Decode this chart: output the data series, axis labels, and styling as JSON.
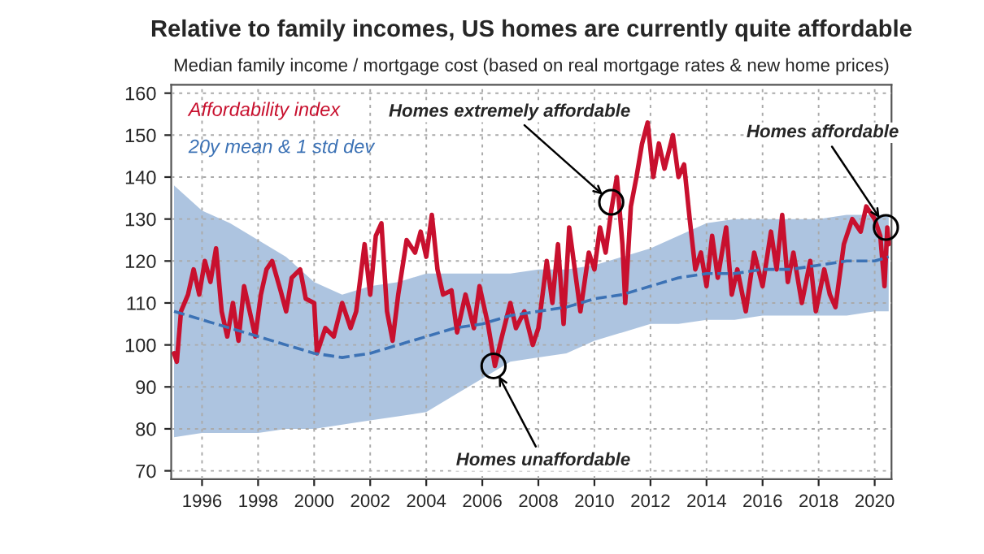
{
  "chart_data": {
    "type": "line",
    "title": "Relative to family incomes, US homes are currently quite affordable",
    "subtitle": "Median family income / mortgage cost (based on real mortgage rates & new home prices)",
    "series": [
      {
        "name": "Affordability index",
        "color": "#c8102e",
        "x": [
          1995.0,
          1995.1,
          1995.25,
          1995.5,
          1995.7,
          1995.9,
          1996.1,
          1996.3,
          1996.5,
          1996.7,
          1996.9,
          1997.1,
          1997.3,
          1997.5,
          1997.7,
          1997.9,
          1998.1,
          1998.3,
          1998.5,
          1998.8,
          1999.0,
          1999.2,
          1999.5,
          1999.7,
          2000.0,
          2000.1,
          2000.4,
          2000.7,
          2001.0,
          2001.3,
          2001.5,
          2001.8,
          2002.0,
          2002.2,
          2002.4,
          2002.6,
          2002.8,
          2003.0,
          2003.3,
          2003.6,
          2003.8,
          2004.0,
          2004.2,
          2004.4,
          2004.6,
          2004.9,
          2005.1,
          2005.4,
          2005.7,
          2005.9,
          2006.2,
          2006.45,
          2006.7,
          2007.0,
          2007.2,
          2007.5,
          2007.8,
          2008.0,
          2008.3,
          2008.5,
          2008.7,
          2008.9,
          2009.1,
          2009.3,
          2009.5,
          2009.8,
          2010.0,
          2010.2,
          2010.4,
          2010.6,
          2010.8,
          2011.0,
          2011.1,
          2011.3,
          2011.5,
          2011.7,
          2011.9,
          2012.1,
          2012.3,
          2012.5,
          2012.8,
          2013.0,
          2013.2,
          2013.4,
          2013.6,
          2013.8,
          2014.0,
          2014.2,
          2014.4,
          2014.7,
          2014.9,
          2015.1,
          2015.4,
          2015.7,
          2016.0,
          2016.3,
          2016.5,
          2016.7,
          2016.9,
          2017.1,
          2017.4,
          2017.7,
          2017.9,
          2018.2,
          2018.4,
          2018.6,
          2018.9,
          2019.2,
          2019.5,
          2019.7,
          2020.0,
          2020.2,
          2020.35,
          2020.45,
          2020.5
        ],
        "values": [
          98,
          96,
          108,
          112,
          118,
          112,
          120,
          115,
          123,
          108,
          102,
          110,
          101,
          114,
          108,
          102,
          112,
          118,
          120,
          113,
          108,
          116,
          118,
          111,
          110,
          98,
          104,
          102,
          110,
          104,
          108,
          124,
          112,
          126,
          129,
          108,
          101,
          112,
          125,
          122,
          127,
          121,
          131,
          118,
          112,
          113,
          103,
          112,
          104,
          114,
          105,
          95,
          102,
          110,
          104,
          108,
          100,
          104,
          120,
          110,
          124,
          105,
          128,
          118,
          108,
          122,
          118,
          128,
          122,
          132,
          140,
          124,
          110,
          133,
          140,
          148,
          153,
          140,
          148,
          142,
          150,
          140,
          143,
          130,
          118,
          122,
          114,
          126,
          116,
          128,
          112,
          118,
          108,
          122,
          114,
          127,
          118,
          131,
          115,
          122,
          110,
          120,
          108,
          118,
          112,
          109,
          124,
          130,
          127,
          133,
          130,
          126,
          114,
          128,
          124
        ]
      },
      {
        "name": "20y mean & 1 std dev",
        "color": "#3c72b5",
        "line_style": "dashed",
        "x": [
          1995,
          1996,
          1997,
          1998,
          1999,
          2000,
          2001,
          2002,
          2003,
          2004,
          2005,
          2006,
          2007,
          2008,
          2009,
          2010,
          2011,
          2012,
          2013,
          2014,
          2015,
          2016,
          2017,
          2018,
          2019,
          2020,
          2020.5
        ],
        "values": [
          108,
          106,
          104,
          102,
          100,
          98,
          97,
          98,
          100,
          102,
          104,
          105,
          107,
          108,
          109,
          111,
          112,
          114,
          116,
          117,
          117,
          118,
          118,
          119,
          120,
          120,
          121
        ],
        "lower": [
          78,
          79,
          79,
          79,
          80,
          80,
          81,
          82,
          83,
          84,
          88,
          92,
          96,
          97,
          98,
          101,
          103,
          105,
          105,
          106,
          106,
          107,
          107,
          107,
          107,
          108,
          108
        ],
        "upper": [
          138,
          132,
          129,
          125,
          121,
          115,
          112,
          114,
          115,
          117,
          117,
          117,
          117,
          118,
          118,
          119,
          121,
          123,
          126,
          129,
          130,
          130,
          130,
          130,
          131,
          131,
          131
        ]
      }
    ],
    "xlim": [
      1994.9,
      2020.6
    ],
    "xticks": [
      1996,
      1998,
      2000,
      2002,
      2004,
      2006,
      2008,
      2010,
      2012,
      2014,
      2016,
      2018,
      2020
    ],
    "ylim": [
      68,
      162
    ],
    "yticks": [
      70,
      80,
      90,
      100,
      110,
      120,
      130,
      140,
      150,
      160
    ],
    "grid": true,
    "legend": "top left",
    "annotations": [
      {
        "text": "Homes extremely affordable",
        "x": 2010.6,
        "y": 134
      },
      {
        "text": "Homes affordable",
        "x": 2020.4,
        "y": 128
      },
      {
        "text": "Homes unaffordable",
        "x": 2006.4,
        "y": 95
      }
    ]
  }
}
